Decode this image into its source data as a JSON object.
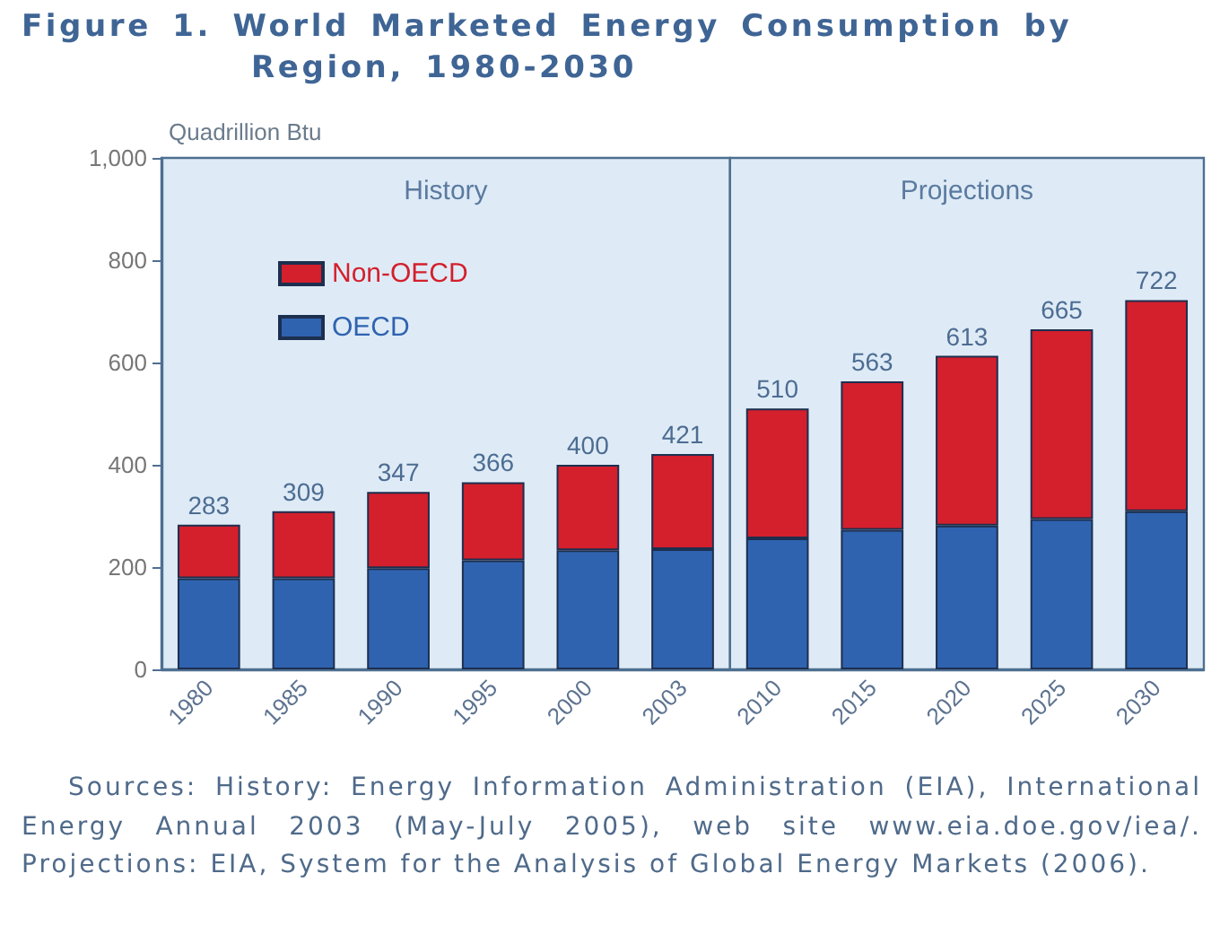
{
  "chart_data": {
    "type": "bar",
    "title": "Figure 1. World Marketed Energy Consumption by Region, 1980-2030",
    "ylabel": "Quadrillion Btu",
    "categories": [
      "1980",
      "1985",
      "1990",
      "1995",
      "2000",
      "2003",
      "2010",
      "2015",
      "2020",
      "2025",
      "2030"
    ],
    "series": [
      {
        "name": "OECD",
        "color": "#2f63b0",
        "values": [
          178,
          178,
          198,
          213,
          233,
          235,
          256,
          273,
          281,
          294,
          309
        ]
      },
      {
        "name": "Non-OECD",
        "color": "#d41f2d",
        "values": [
          105,
          131,
          149,
          153,
          167,
          186,
          254,
          290,
          332,
          371,
          413
        ]
      }
    ],
    "stacked": true,
    "totals": [
      "283",
      "309",
      "347",
      "366",
      "400",
      "421",
      "510",
      "563",
      "613",
      "665",
      "722"
    ],
    "ylim": [
      0,
      1000
    ],
    "yticks": [
      0,
      200,
      400,
      600,
      800,
      {
        "value": 1000,
        "label": "1,000"
      }
    ],
    "grid": false,
    "legend": "top left",
    "bands": [
      {
        "axis": "x",
        "from": "1980",
        "to": "2003",
        "label": "History",
        "color": "#deebf6"
      },
      {
        "axis": "x",
        "from": "2010",
        "to": "2030",
        "label": "Projections",
        "color": "#deebf6"
      }
    ],
    "annotations": [
      "Sources: History: Energy Information Administration (EIA), International Energy Annual 2003 (May-July 2005), web site www.eia.doe.gov/iea/. Projections: EIA, System for the Analysis of Global Energy Markets (2006)."
    ]
  }
}
